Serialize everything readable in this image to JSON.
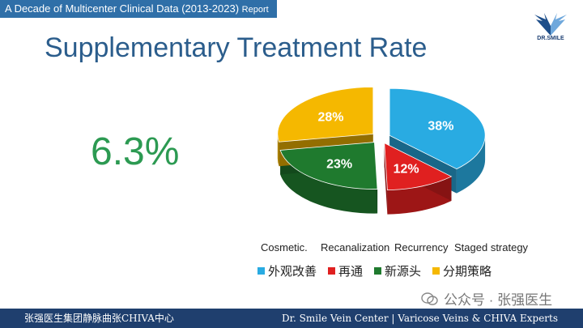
{
  "header": {
    "banner_main": "A Decade of Multicenter Clinical Data (2013-2023)",
    "banner_suffix": "Report",
    "logo_text": "DR.SMILE"
  },
  "title": "Supplementary Treatment Rate",
  "big_stat": "6.3%",
  "chart_data": {
    "type": "pie",
    "title": "",
    "labels": [
      "外观改善",
      "再通",
      "新源头",
      "分期策略"
    ],
    "english_labels": [
      "Cosmetic.",
      "Recanalization",
      "Recurrency",
      "Staged strategy"
    ],
    "values": [
      38,
      12,
      23,
      28
    ],
    "value_labels": [
      "38%",
      "12%",
      "23%",
      "28%"
    ],
    "colors": [
      "#29abe2",
      "#e02020",
      "#1f7a2e",
      "#f5b800"
    ],
    "legend_position": "bottom"
  },
  "watermark": "公众号 · 张强医生",
  "footer": {
    "left": "张强医生集团静脉曲张CHIVA中心",
    "right": "Dr. Smile Vein Center | Varicose Veins & CHIVA Experts"
  }
}
